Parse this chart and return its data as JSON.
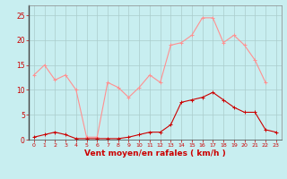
{
  "x": [
    0,
    1,
    2,
    3,
    4,
    5,
    6,
    7,
    8,
    9,
    10,
    11,
    12,
    13,
    14,
    15,
    16,
    17,
    18,
    19,
    20,
    21,
    22,
    23
  ],
  "rafales": [
    13,
    15,
    12,
    13,
    10,
    0.5,
    0.5,
    11.5,
    10.5,
    8.5,
    10.5,
    13,
    11.5,
    19,
    19.5,
    21,
    24.5,
    24.5,
    19.5,
    21,
    19,
    16,
    11.5,
    null
  ],
  "moyen": [
    0.5,
    1,
    1.5,
    1,
    0.2,
    0.2,
    0.2,
    0.2,
    0.2,
    0.5,
    1,
    1.5,
    1.5,
    3,
    7.5,
    8,
    8.5,
    9.5,
    8,
    6.5,
    5.5,
    5.5,
    2,
    1.5
  ],
  "line_color_rafales": "#ff9090",
  "line_color_moyen": "#cc0000",
  "bg_color": "#c8eef0",
  "grid_color": "#aacccc",
  "xlabel": "Vent moyen/en rafales ( km/h )",
  "ylim": [
    0,
    27
  ],
  "xlim": [
    -0.5,
    23.5
  ],
  "yticks": [
    0,
    5,
    10,
    15,
    20,
    25
  ],
  "xticks": [
    0,
    1,
    2,
    3,
    4,
    5,
    6,
    7,
    8,
    9,
    10,
    11,
    12,
    13,
    14,
    15,
    16,
    17,
    18,
    19,
    20,
    21,
    22,
    23
  ]
}
